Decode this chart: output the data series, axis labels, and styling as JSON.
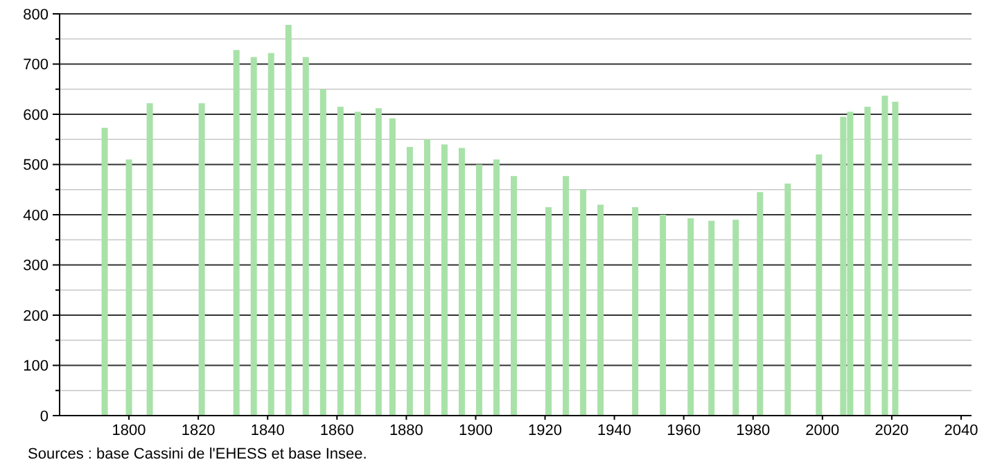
{
  "chart_data": {
    "type": "bar",
    "x": [
      1793,
      1800,
      1806,
      1821,
      1831,
      1836,
      1841,
      1846,
      1851,
      1856,
      1861,
      1866,
      1872,
      1876,
      1881,
      1886,
      1891,
      1896,
      1901,
      1906,
      1911,
      1921,
      1926,
      1931,
      1936,
      1946,
      1954,
      1962,
      1968,
      1975,
      1982,
      1990,
      1999,
      2006,
      2008,
      2013,
      2018,
      2021
    ],
    "values": [
      573,
      510,
      622,
      622,
      728,
      714,
      722,
      778,
      714,
      650,
      615,
      605,
      612,
      592,
      535,
      550,
      540,
      533,
      500,
      510,
      477,
      415,
      477,
      450,
      420,
      415,
      400,
      393,
      388,
      390,
      445,
      462,
      520,
      595,
      605,
      615,
      637,
      625
    ],
    "color": "#a8e2a8",
    "xlim": [
      1780,
      2043
    ],
    "xticks": [
      1800,
      1820,
      1840,
      1860,
      1880,
      1900,
      1920,
      1940,
      1960,
      1980,
      2000,
      2020,
      2040
    ],
    "ylim": [
      0,
      800
    ],
    "yticks": [
      0,
      {
        "value": 50,
        "label": null
      },
      100,
      {
        "value": 150,
        "label": null
      },
      200,
      {
        "value": 250,
        "label": null
      },
      300,
      {
        "value": 350,
        "label": null
      },
      400,
      {
        "value": 450,
        "label": null
      },
      500,
      {
        "value": 550,
        "label": null
      },
      600,
      {
        "value": 650,
        "label": null
      },
      700,
      {
        "value": 750,
        "label": null
      },
      800
    ],
    "grid": "y",
    "annotations": [
      "Sources : base Cassini de l'EHESS et base Insee."
    ]
  }
}
